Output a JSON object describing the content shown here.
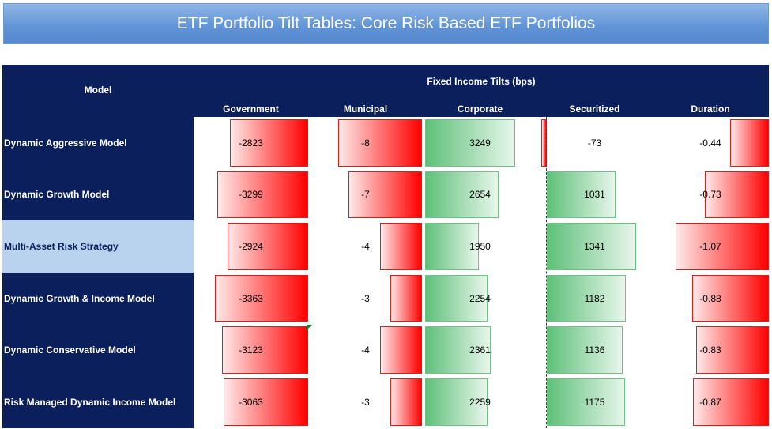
{
  "title": "ETF Portfolio Tilt Tables: Core Risk Based ETF Portfolios",
  "header": {
    "model": "Model",
    "group": "Fixed Income Tilts (bps)",
    "columns": [
      "Government",
      "Municipal",
      "Corporate",
      "Securitized",
      "Duration"
    ]
  },
  "rows": [
    {
      "label": "Dynamic Aggressive Model",
      "highlight": false,
      "values": [
        "-2823",
        "-8",
        "3249",
        "-73",
        "-0.44"
      ]
    },
    {
      "label": "Dynamic Growth Model",
      "highlight": false,
      "values": [
        "-3299",
        "-7",
        "2654",
        "1031",
        "-0.73"
      ]
    },
    {
      "label": "Multi-Asset Risk Strategy",
      "highlight": true,
      "values": [
        "-2924",
        "-4",
        "1950",
        "1341",
        "-1.07"
      ]
    },
    {
      "label": "Dynamic Growth & Income Model",
      "highlight": false,
      "values": [
        "-3363",
        "-3",
        "2254",
        "1182",
        "-0.88"
      ]
    },
    {
      "label": "Dynamic Conservative Model",
      "highlight": false,
      "values": [
        "-3123",
        "-4",
        "2361",
        "1136",
        "-0.83"
      ]
    },
    {
      "label": "Risk Managed Dynamic Income Model",
      "highlight": false,
      "values": [
        "-3063",
        "-3",
        "2259",
        "1175",
        "-0.87"
      ]
    }
  ],
  "colors": {
    "header_bg": "#0a1f5c",
    "highlight_bg": "#b9d3ee",
    "negative_bar": "#ff0000",
    "positive_bar": "#5fc07a",
    "banner": "#5f93d6"
  }
}
